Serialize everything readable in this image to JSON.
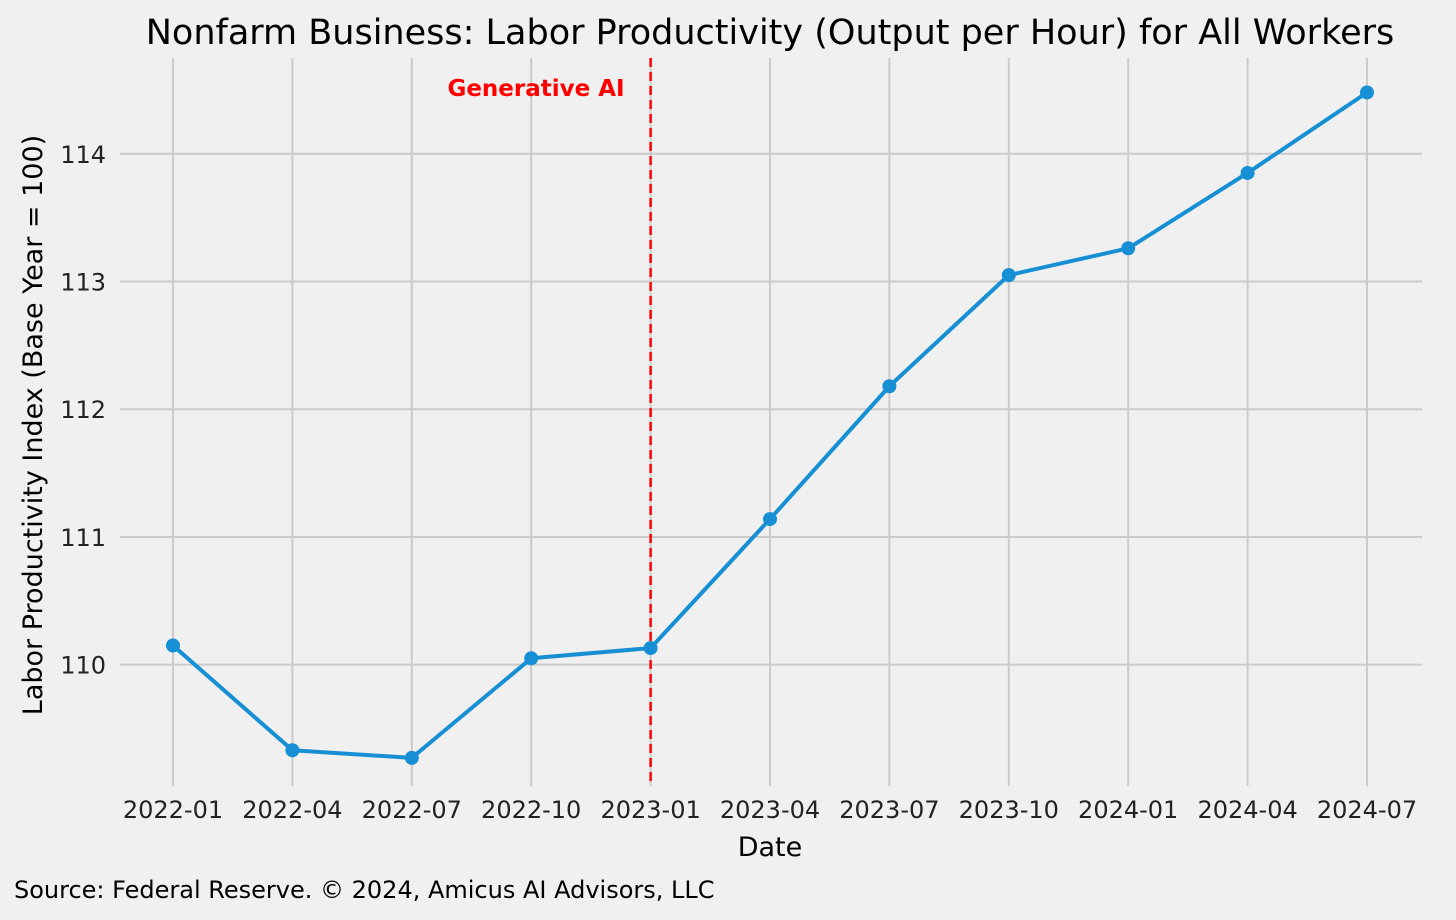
{
  "chart_data": {
    "type": "line",
    "title": "Nonfarm Business: Labor Productivity (Output per Hour) for All Workers",
    "xlabel": "Date",
    "ylabel": "Labor Productivity Index (Base Year = 100)",
    "x": [
      "2022-01",
      "2022-04",
      "2022-07",
      "2022-10",
      "2023-01",
      "2023-04",
      "2023-07",
      "2023-10",
      "2024-01",
      "2024-04",
      "2024-07"
    ],
    "x_tick_labels": [
      "2022-01",
      "2022-04",
      "2022-07",
      "2022-10",
      "2023-01",
      "2023-04",
      "2023-07",
      "2023-10",
      "2024-01",
      "2024-04",
      "2024-07"
    ],
    "series": [
      {
        "values": [
          110.15,
          109.33,
          109.27,
          110.05,
          110.13,
          111.14,
          112.18,
          113.05,
          113.26,
          113.85,
          114.48
        ]
      }
    ],
    "ylim": [
      109.05,
      114.75
    ],
    "y_ticks": [
      110,
      111,
      112,
      113,
      114
    ],
    "grid": true,
    "line_color": "#168fd4",
    "annotation": {
      "text": "Generative AI",
      "x": "2023-01",
      "color": "#ff0000",
      "line_style": "dashed"
    },
    "source": "Source: Federal Reserve. © 2024, Amicus AI Advisors, LLC"
  }
}
